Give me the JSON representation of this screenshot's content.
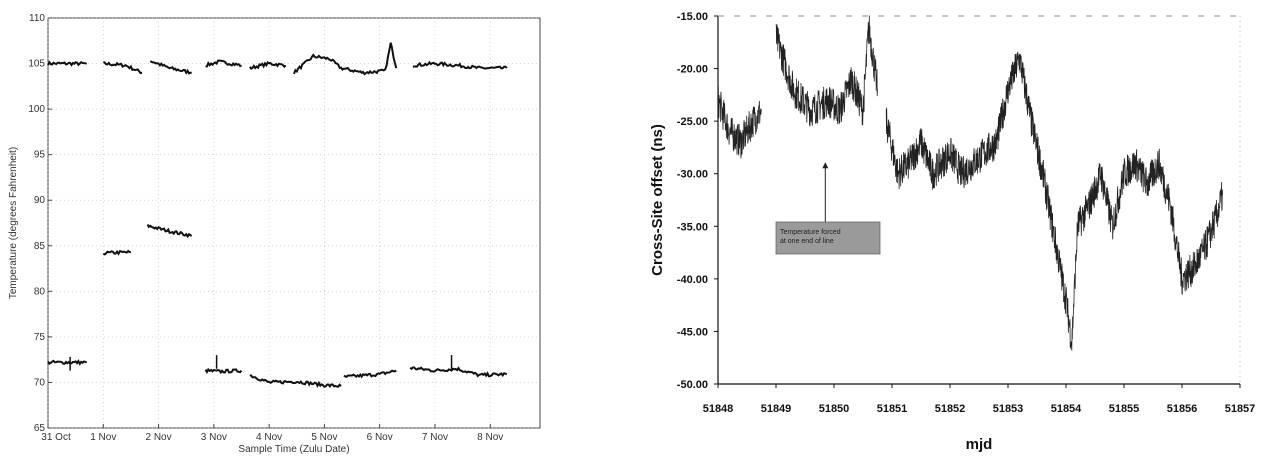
{
  "chart_data": [
    {
      "type": "line",
      "xlabel": "Sample Time (Zulu Date)",
      "ylabel": "Temperature (degrees Fahrenheit)",
      "ylim": [
        65,
        110
      ],
      "yticks": [
        65,
        70,
        75,
        80,
        85,
        90,
        95,
        100,
        105,
        110
      ],
      "categories": [
        "31 Oct",
        "1 Nov",
        "2 Nov",
        "3 Nov",
        "4 Nov",
        "5 Nov",
        "6 Nov",
        "7 Nov",
        "8 Nov"
      ],
      "grid": true,
      "series": [
        {
          "values_description": "upper trace",
          "segments": [
            [
              [
                0.0,
                105
              ],
              [
                0.7,
                105
              ]
            ],
            [
              [
                1.0,
                105
              ],
              [
                1.4,
                104.8
              ],
              [
                1.7,
                104
              ]
            ],
            [
              [
                1.85,
                105.3
              ],
              [
                2.2,
                104.5
              ],
              [
                2.6,
                104
              ]
            ],
            [
              [
                2.85,
                104.8
              ],
              [
                3.1,
                105.2
              ],
              [
                3.5,
                104.8
              ]
            ],
            [
              [
                3.65,
                104.5
              ],
              [
                4.0,
                105
              ],
              [
                4.3,
                104.8
              ]
            ],
            [
              [
                4.45,
                104
              ],
              [
                4.8,
                105.8
              ],
              [
                5.1,
                105.5
              ],
              [
                5.3,
                104.5
              ],
              [
                5.7,
                104
              ],
              [
                6.1,
                104.2
              ],
              [
                6.2,
                107.2
              ],
              [
                6.3,
                104.5
              ]
            ],
            [
              [
                6.6,
                104.8
              ],
              [
                7.0,
                105
              ],
              [
                7.4,
                104.8
              ],
              [
                7.8,
                104.5
              ],
              [
                8.3,
                104.5
              ]
            ]
          ]
        },
        {
          "values_description": "middle trace",
          "segments": [
            [
              [
                1.0,
                84.2
              ],
              [
                1.5,
                84.3
              ]
            ],
            [
              [
                1.8,
                87.2
              ],
              [
                2.2,
                86.6
              ],
              [
                2.6,
                86.1
              ]
            ]
          ]
        },
        {
          "values_description": "lower trace",
          "segments": [
            [
              [
                0.0,
                72.2
              ],
              [
                0.7,
                72.2
              ]
            ],
            [
              [
                2.85,
                71.3
              ],
              [
                3.1,
                71.2
              ],
              [
                3.5,
                71.3
              ]
            ],
            [
              [
                3.65,
                70.8
              ],
              [
                4.0,
                70.0
              ],
              [
                4.5,
                70.1
              ],
              [
                5.0,
                69.7
              ],
              [
                5.3,
                69.6
              ]
            ],
            [
              [
                5.35,
                70.6
              ],
              [
                6.0,
                70.9
              ],
              [
                6.3,
                71.3
              ]
            ],
            [
              [
                6.55,
                71.6
              ],
              [
                7.0,
                71.3
              ],
              [
                7.4,
                71.5
              ],
              [
                7.8,
                70.8
              ],
              [
                8.3,
                70.9
              ]
            ]
          ],
          "spikes": [
            [
              3.05,
              73.0
            ],
            [
              7.3,
              73.0
            ],
            [
              0.4,
              72.8
            ]
          ]
        }
      ]
    },
    {
      "type": "line",
      "xlabel": "mjd",
      "ylabel": "Cross-Site offset (ns)",
      "xlim": [
        51848,
        51857
      ],
      "ylim": [
        -50,
        -15
      ],
      "xticks": [
        "51848",
        "51849",
        "51850",
        "51851",
        "51852",
        "51853",
        "51854",
        "51855",
        "51856",
        "51857"
      ],
      "yticks": [
        "-15.00",
        "-20.00",
        "-25.00",
        "-30.00",
        "-35.00",
        "-40.00",
        "-45.00",
        "-50.00"
      ],
      "series": [
        {
          "segments": [
            [
              [
                51848.0,
                -23
              ],
              [
                51848.2,
                -26
              ],
              [
                51848.4,
                -27
              ],
              [
                51848.6,
                -25
              ],
              [
                51848.75,
                -24
              ]
            ],
            [
              [
                51849.0,
                -17
              ],
              [
                51849.3,
                -22
              ],
              [
                51849.6,
                -24
              ],
              [
                51849.9,
                -23
              ],
              [
                51850.1,
                -24
              ],
              [
                51850.3,
                -21
              ],
              [
                51850.5,
                -24
              ],
              [
                51850.6,
                -16
              ],
              [
                51850.75,
                -22
              ]
            ],
            [
              [
                51850.9,
                -25
              ],
              [
                51851.1,
                -30
              ],
              [
                51851.3,
                -29
              ],
              [
                51851.5,
                -27
              ],
              [
                51851.7,
                -30
              ],
              [
                51852.0,
                -28
              ],
              [
                51852.2,
                -30
              ],
              [
                51852.4,
                -29
              ],
              [
                51852.6,
                -28
              ],
              [
                51852.8,
                -27
              ],
              [
                51853.0,
                -22
              ],
              [
                51853.2,
                -19
              ],
              [
                51853.4,
                -25
              ],
              [
                51853.6,
                -30
              ],
              [
                51853.8,
                -36
              ],
              [
                51854.0,
                -42
              ],
              [
                51854.1,
                -46
              ],
              [
                51854.2,
                -35
              ],
              [
                51854.4,
                -33
              ],
              [
                51854.6,
                -30
              ],
              [
                51854.8,
                -35
              ],
              [
                51855.0,
                -30
              ],
              [
                51855.2,
                -29
              ],
              [
                51855.4,
                -31
              ],
              [
                51855.6,
                -29
              ],
              [
                51855.8,
                -33
              ],
              [
                51856.0,
                -40
              ],
              [
                51856.2,
                -39
              ],
              [
                51856.4,
                -37
              ],
              [
                51856.6,
                -34
              ],
              [
                51856.7,
                -32
              ]
            ]
          ]
        }
      ],
      "annotation": {
        "text_lines": [
          "Temperature forced",
          "at one end of line"
        ],
        "point": [
          51849.85,
          -29
        ]
      }
    }
  ]
}
